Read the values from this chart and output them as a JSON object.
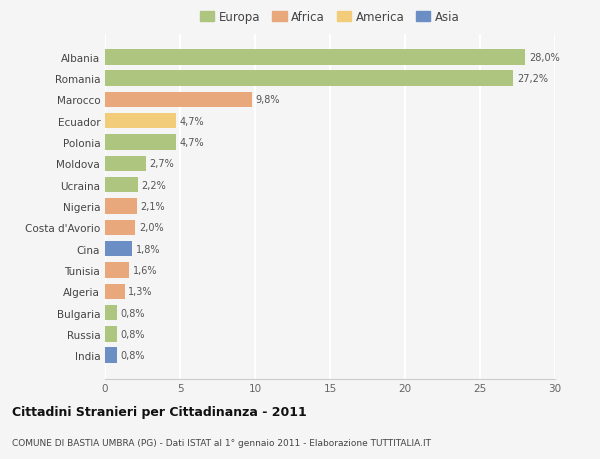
{
  "countries": [
    "Albania",
    "Romania",
    "Marocco",
    "Ecuador",
    "Polonia",
    "Moldova",
    "Ucraina",
    "Nigeria",
    "Costa d'Avorio",
    "Cina",
    "Tunisia",
    "Algeria",
    "Bulgaria",
    "Russia",
    "India"
  ],
  "values": [
    28.0,
    27.2,
    9.8,
    4.7,
    4.7,
    2.7,
    2.2,
    2.1,
    2.0,
    1.8,
    1.6,
    1.3,
    0.8,
    0.8,
    0.8
  ],
  "labels": [
    "28,0%",
    "27,2%",
    "9,8%",
    "4,7%",
    "4,7%",
    "2,7%",
    "2,2%",
    "2,1%",
    "2,0%",
    "1,8%",
    "1,6%",
    "1,3%",
    "0,8%",
    "0,8%",
    "0,8%"
  ],
  "colors": [
    "#adc57e",
    "#adc57e",
    "#e8a87c",
    "#f2cc78",
    "#adc57e",
    "#adc57e",
    "#adc57e",
    "#e8a87c",
    "#e8a87c",
    "#6b8ec4",
    "#e8a87c",
    "#e8a87c",
    "#adc57e",
    "#adc57e",
    "#6b8ec4"
  ],
  "legend_labels": [
    "Europa",
    "Africa",
    "America",
    "Asia"
  ],
  "legend_colors": [
    "#adc57e",
    "#e8a87c",
    "#f2cc78",
    "#6b8ec4"
  ],
  "title": "Cittadini Stranieri per Cittadinanza - 2011",
  "subtitle": "COMUNE DI BASTIA UMBRA (PG) - Dati ISTAT al 1° gennaio 2011 - Elaborazione TUTTITALIA.IT",
  "xlim": [
    0,
    30
  ],
  "xticks": [
    0,
    5,
    10,
    15,
    20,
    25,
    30
  ],
  "background_color": "#f5f5f5",
  "grid_color": "#ffffff",
  "bar_height": 0.72
}
